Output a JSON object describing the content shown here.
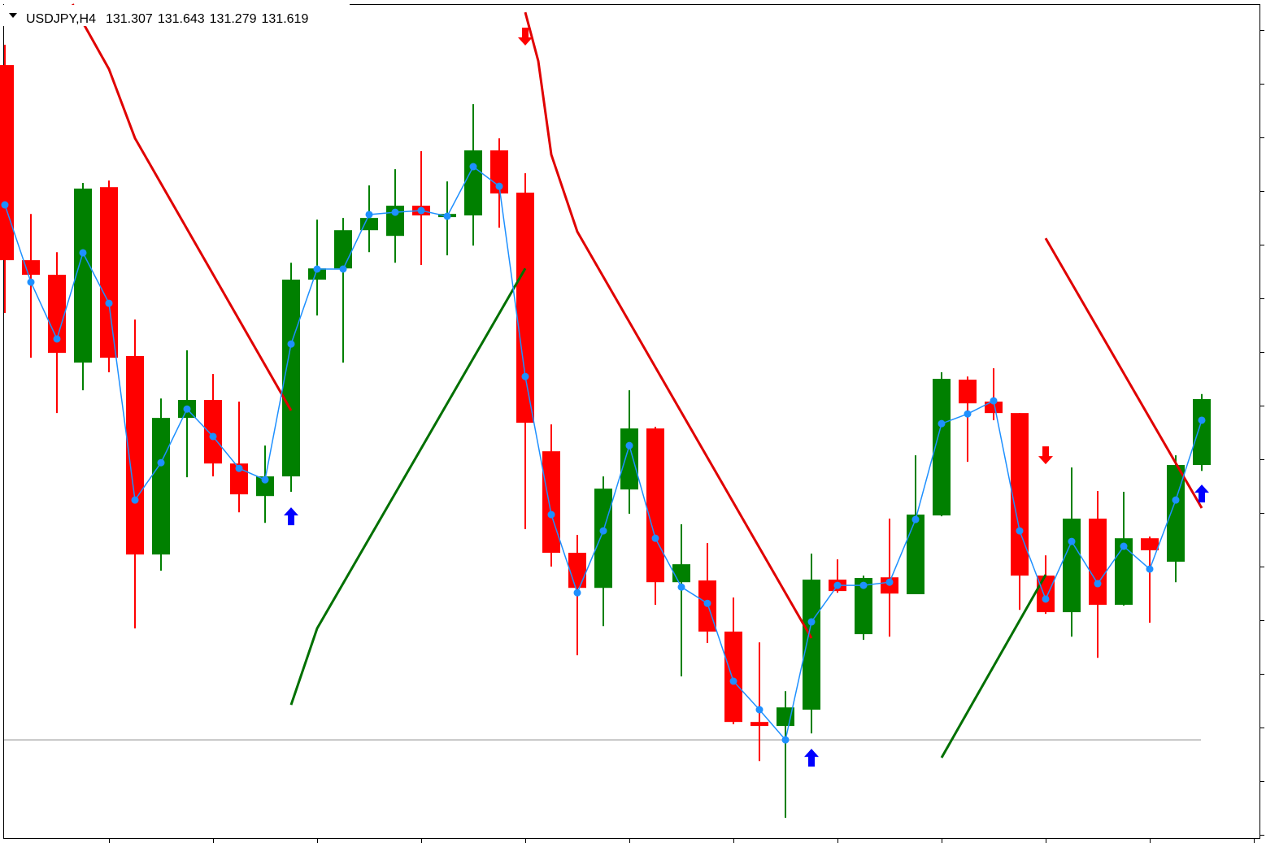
{
  "chart_data": {
    "type": "candlestick",
    "title": "USDJPY,H4",
    "ylim": [
      129.544,
      133.49
    ],
    "up_color": "#008000",
    "down_color": "#ff0000",
    "open": [
      133.201,
      132.277,
      132.208,
      131.792,
      132.623,
      131.823,
      130.883,
      131.53,
      131.615,
      131.314,
      131.16,
      131.253,
      132.185,
      132.238,
      132.419,
      132.392,
      132.535,
      132.481,
      132.489,
      132.797,
      132.597,
      131.372,
      130.891,
      130.725,
      131.191,
      131.48,
      130.752,
      130.76,
      130.518,
      130.09,
      130.071,
      130.148,
      130.764,
      130.506,
      130.775,
      130.695,
      131.068,
      131.711,
      131.607,
      131.553,
      130.783,
      130.61,
      131.053,
      130.645,
      130.96,
      130.849,
      131.307
    ],
    "high": [
      133.297,
      132.496,
      132.315,
      132.643,
      132.654,
      131.996,
      131.622,
      131.85,
      131.738,
      131.607,
      131.399,
      132.265,
      132.469,
      132.477,
      132.631,
      132.708,
      132.793,
      132.65,
      133.016,
      132.854,
      132.689,
      131.499,
      130.976,
      131.253,
      131.661,
      131.488,
      131.026,
      130.937,
      130.679,
      130.467,
      130.236,
      130.887,
      130.86,
      130.783,
      131.053,
      131.353,
      131.746,
      131.726,
      131.765,
      131.553,
      130.879,
      131.295,
      131.184,
      131.18,
      130.968,
      131.353,
      131.643
    ],
    "low": [
      132.027,
      131.815,
      131.553,
      131.661,
      131.746,
      130.533,
      130.806,
      131.249,
      131.253,
      131.083,
      131.033,
      131.18,
      132.015,
      131.792,
      132.315,
      132.265,
      132.254,
      132.3,
      132.346,
      132.431,
      131.003,
      130.826,
      130.406,
      130.544,
      131.076,
      130.645,
      130.306,
      130.464,
      130.079,
      129.905,
      129.636,
      130.036,
      130.702,
      130.479,
      130.494,
      130.695,
      131.064,
      131.322,
      131.519,
      130.621,
      130.602,
      130.494,
      130.394,
      130.641,
      130.56,
      130.752,
      131.279
    ],
    "close": [
      132.277,
      132.208,
      131.838,
      132.616,
      131.815,
      130.883,
      131.53,
      131.615,
      131.314,
      131.168,
      131.253,
      132.185,
      132.238,
      132.419,
      132.477,
      132.535,
      132.489,
      132.496,
      132.797,
      132.593,
      131.507,
      130.891,
      130.725,
      131.195,
      131.48,
      130.752,
      130.837,
      130.518,
      130.09,
      130.071,
      130.159,
      130.764,
      130.71,
      130.772,
      130.698,
      131.072,
      131.715,
      131.599,
      131.553,
      130.783,
      130.61,
      131.053,
      130.645,
      130.96,
      130.903,
      131.307,
      131.619
    ],
    "ma": {
      "color": "#1e90ff",
      "values": [
        132.539,
        132.173,
        131.904,
        132.312,
        132.073,
        131.141,
        131.318,
        131.572,
        131.442,
        131.291,
        131.237,
        131.88,
        132.235,
        132.235,
        132.493,
        132.504,
        132.512,
        132.485,
        132.72,
        132.627,
        131.726,
        131.072,
        130.702,
        130.995,
        131.399,
        130.96,
        130.729,
        130.652,
        130.283,
        130.148,
        130.005,
        130.564,
        130.737,
        130.737,
        130.752,
        131.049,
        131.503,
        131.549,
        131.611,
        130.995,
        130.672,
        130.945,
        130.745,
        130.922,
        130.814,
        131.141,
        131.519
      ]
    },
    "lines": [
      {
        "color": "#e00000",
        "x": [
          2.6,
          4.0,
          5.0,
          11.0
        ],
        "values": [
          133.49,
          133.182,
          132.855,
          131.565
        ]
      },
      {
        "color": "#e00000",
        "x": [
          20.0,
          20.5,
          21.0,
          22.0,
          31.0
        ],
        "values": [
          133.451,
          133.22,
          132.777,
          132.412,
          130.487
        ]
      },
      {
        "color": "#e00000",
        "x": [
          40.0,
          46.0
        ],
        "values": [
          132.381,
          131.103
        ]
      },
      {
        "color": "#007000",
        "x": [
          11.0,
          12.0,
          20.0
        ],
        "values": [
          130.171,
          130.533,
          132.238
        ]
      },
      {
        "color": "#007000",
        "x": [
          36.0,
          40.0
        ],
        "values": [
          129.921,
          130.787
        ]
      }
    ],
    "signals": [
      {
        "direction": "up",
        "color": "#0000ff",
        "x": 11,
        "value": 131.064
      },
      {
        "direction": "up",
        "color": "#0000ff",
        "x": 31,
        "value": 129.921
      },
      {
        "direction": "up",
        "color": "#0000ff",
        "x": 46,
        "value": 131.172
      },
      {
        "direction": "down",
        "color": "#ff0000",
        "x": 20,
        "value": 133.336
      },
      {
        "direction": "down",
        "color": "#ff0000",
        "x": 40,
        "value": 131.353
      }
    ],
    "hline": {
      "color": "#b0b0b0",
      "value": 130.005
    }
  }
}
